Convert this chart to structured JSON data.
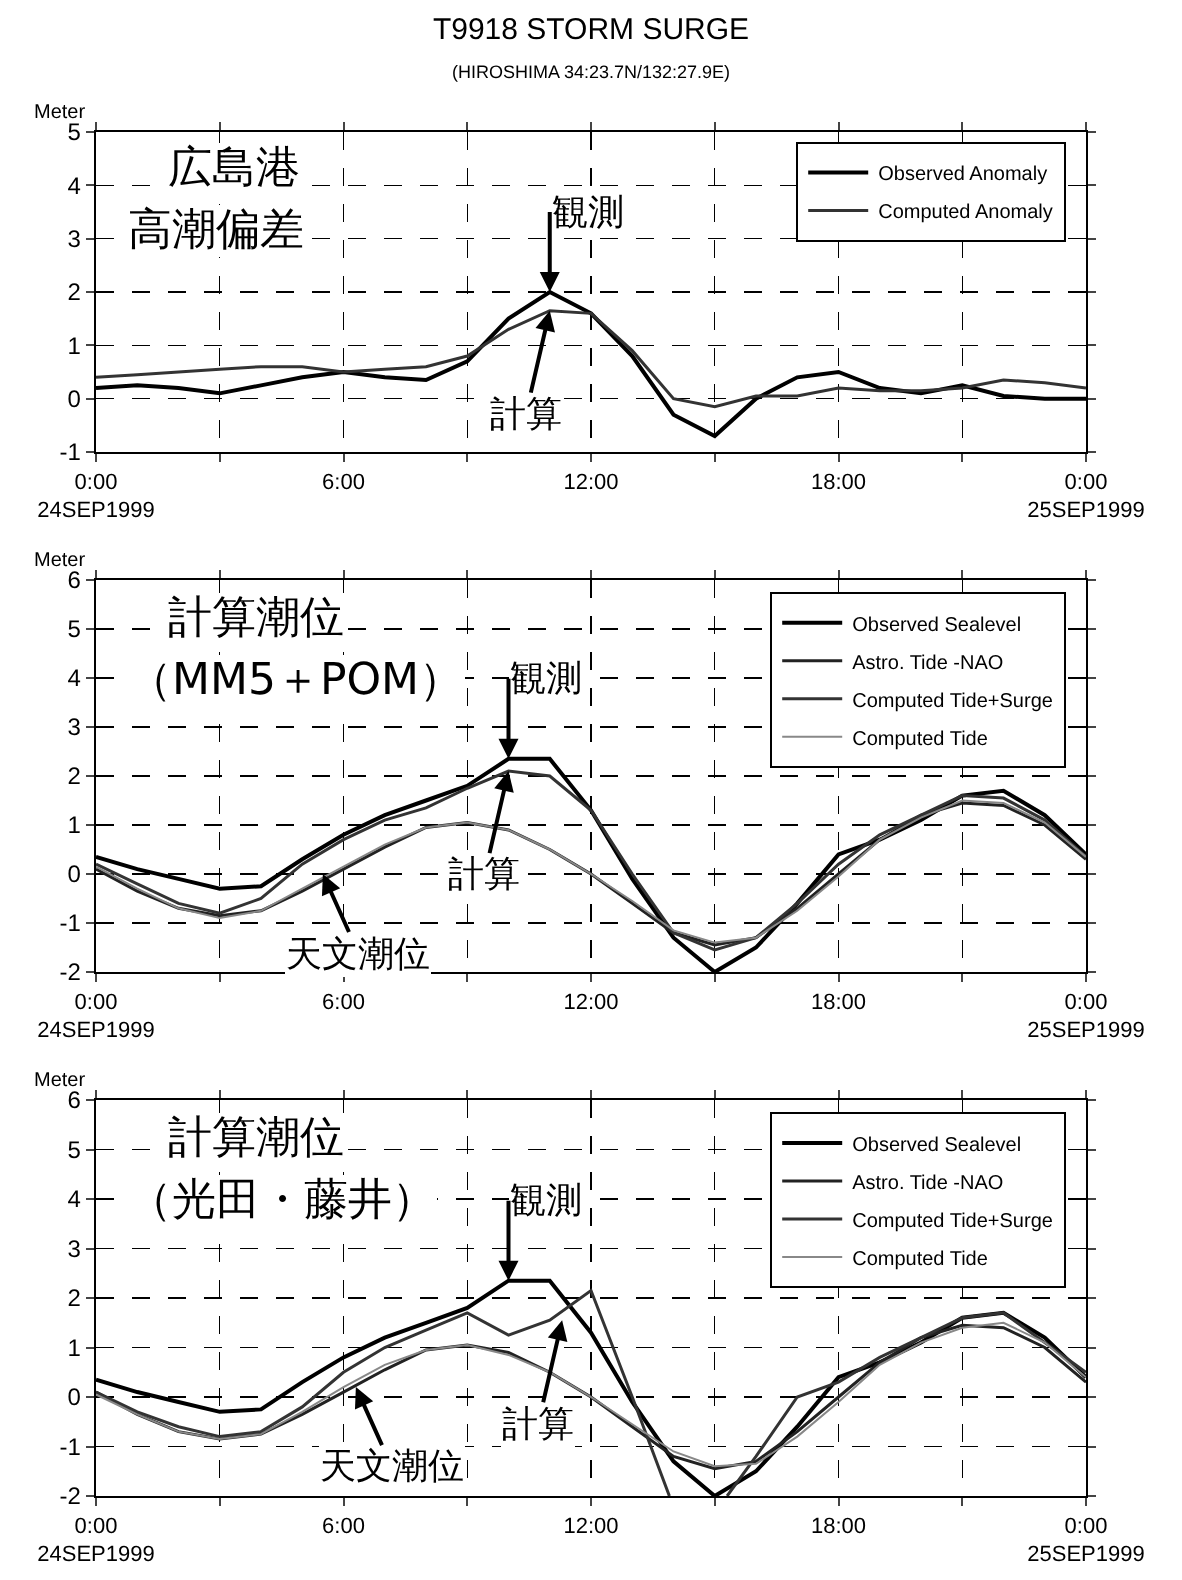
{
  "chart_data": [
    {
      "type": "line",
      "title": "T9918 STORM SURGE",
      "subtitle": "(HIROSHIMA 34:23.7N/132:27.9E)",
      "ylabel": "Meter",
      "x": [
        0,
        1,
        2,
        3,
        4,
        5,
        6,
        7,
        8,
        9,
        10,
        11,
        12,
        13,
        14,
        15,
        16,
        17,
        18,
        19,
        20,
        21,
        22,
        23,
        24
      ],
      "series": [
        {
          "name": "Observed Anomaly",
          "color": "#000000",
          "values": [
            0.2,
            0.25,
            0.2,
            0.1,
            0.25,
            0.4,
            0.5,
            0.4,
            0.35,
            0.7,
            1.5,
            2.0,
            1.6,
            0.8,
            -0.3,
            -0.7,
            0.0,
            0.4,
            0.5,
            0.2,
            0.1,
            0.25,
            0.05,
            0.0,
            0.0
          ]
        },
        {
          "name": "Computed Anomaly",
          "color": "#333333",
          "values": [
            0.4,
            0.45,
            0.5,
            0.55,
            0.6,
            0.6,
            0.5,
            0.55,
            0.6,
            0.8,
            1.3,
            1.65,
            1.6,
            0.9,
            0.0,
            -0.15,
            0.05,
            0.05,
            0.2,
            0.15,
            0.15,
            0.2,
            0.35,
            0.3,
            0.2
          ]
        }
      ],
      "xlim": [
        0,
        24
      ],
      "xticks": [
        {
          "value": 0,
          "label": "0:00\n24SEP1999"
        },
        {
          "value": 3,
          "label": null
        },
        {
          "value": 6,
          "label": "6:00"
        },
        {
          "value": 9,
          "label": null
        },
        {
          "value": 12,
          "label": "12:00"
        },
        {
          "value": 15,
          "label": null
        },
        {
          "value": 18,
          "label": "18:00"
        },
        {
          "value": 21,
          "label": null
        },
        {
          "value": 24,
          "label": "0:00\n25SEP1999"
        }
      ],
      "ylim": [
        -1,
        5
      ],
      "yticks": [
        -1,
        0,
        1,
        2,
        3,
        4,
        5
      ],
      "grid": true,
      "legend": "top right",
      "annotations": [
        "広島港",
        "高潮偏差",
        {
          "text": "観測",
          "x": 11,
          "y": 2.0
        },
        {
          "text": "計算",
          "x": 11,
          "y": 1.65
        }
      ]
    },
    {
      "type": "line",
      "ylabel": "Meter",
      "x": [
        0,
        1,
        2,
        3,
        4,
        5,
        6,
        7,
        8,
        9,
        10,
        11,
        12,
        13,
        14,
        15,
        16,
        17,
        18,
        19,
        20,
        21,
        22,
        23,
        24
      ],
      "series": [
        {
          "name": "Observed Sealevel",
          "color": "#000000",
          "values": [
            0.35,
            0.1,
            -0.1,
            -0.3,
            -0.25,
            0.3,
            0.8,
            1.2,
            1.5,
            1.8,
            2.35,
            2.35,
            1.3,
            -0.1,
            -1.3,
            -2.0,
            -1.5,
            -0.6,
            0.4,
            0.7,
            1.1,
            1.6,
            1.7,
            1.2,
            0.4
          ]
        },
        {
          "name": "Astro. Tide -NAO",
          "color": "#222222",
          "values": [
            0.1,
            -0.35,
            -0.7,
            -0.85,
            -0.75,
            -0.35,
            0.1,
            0.55,
            0.95,
            1.05,
            0.9,
            0.5,
            0.0,
            -0.6,
            -1.2,
            -1.45,
            -1.3,
            -0.7,
            0.0,
            0.7,
            1.2,
            1.45,
            1.4,
            1.0,
            0.3
          ]
        },
        {
          "name": "Computed Tide+Surge",
          "color": "#333333",
          "values": [
            0.2,
            -0.2,
            -0.6,
            -0.8,
            -0.5,
            0.2,
            0.7,
            1.1,
            1.35,
            1.75,
            2.1,
            2.0,
            1.3,
            0.0,
            -1.2,
            -1.55,
            -1.3,
            -0.6,
            0.2,
            0.8,
            1.2,
            1.6,
            1.55,
            1.1,
            0.35
          ]
        },
        {
          "name": "Computed Tide",
          "color": "#888888",
          "values": [
            0.15,
            -0.3,
            -0.7,
            -0.9,
            -0.75,
            -0.3,
            0.15,
            0.6,
            0.95,
            1.05,
            0.9,
            0.5,
            0.0,
            -0.55,
            -1.15,
            -1.4,
            -1.3,
            -0.75,
            -0.05,
            0.7,
            1.15,
            1.5,
            1.45,
            1.05,
            0.35
          ]
        }
      ],
      "xlim": [
        0,
        24
      ],
      "xticks": [
        {
          "value": 0,
          "label": "0:00\n24SEP1999"
        },
        {
          "value": 3,
          "label": null
        },
        {
          "value": 6,
          "label": "6:00"
        },
        {
          "value": 9,
          "label": null
        },
        {
          "value": 12,
          "label": "12:00"
        },
        {
          "value": 15,
          "label": null
        },
        {
          "value": 18,
          "label": "18:00"
        },
        {
          "value": 21,
          "label": null
        },
        {
          "value": 24,
          "label": "0:00\n25SEP1999"
        }
      ],
      "ylim": [
        -2,
        6
      ],
      "yticks": [
        -2,
        -1,
        0,
        1,
        2,
        3,
        4,
        5,
        6
      ],
      "grid": true,
      "legend": "top right",
      "annotations": [
        "計算潮位",
        "（MM5＋POM）",
        {
          "text": "観測",
          "x": 10,
          "y": 2.35
        },
        {
          "text": "計算",
          "x": 10,
          "y": 2.1
        },
        {
          "text": "天文潮位",
          "x": 5.5,
          "y": 0.0
        }
      ]
    },
    {
      "type": "line",
      "ylabel": "Meter",
      "x": [
        0,
        1,
        2,
        3,
        4,
        5,
        6,
        7,
        8,
        9,
        10,
        11,
        12,
        13,
        14,
        15,
        16,
        17,
        18,
        19,
        20,
        21,
        22,
        23,
        24
      ],
      "series": [
        {
          "name": "Observed Sealevel",
          "color": "#000000",
          "values": [
            0.35,
            0.1,
            -0.1,
            -0.3,
            -0.25,
            0.3,
            0.8,
            1.2,
            1.5,
            1.8,
            2.35,
            2.35,
            1.3,
            -0.1,
            -1.3,
            -2.0,
            -1.5,
            -0.6,
            0.4,
            0.7,
            1.1,
            1.6,
            1.7,
            1.2,
            0.4
          ]
        },
        {
          "name": "Astro. Tide -NAO",
          "color": "#222222",
          "values": [
            0.1,
            -0.35,
            -0.7,
            -0.85,
            -0.75,
            -0.35,
            0.1,
            0.55,
            0.95,
            1.05,
            0.9,
            0.5,
            0.0,
            -0.6,
            -1.2,
            -1.45,
            -1.3,
            -0.7,
            0.0,
            0.7,
            1.2,
            1.45,
            1.4,
            1.0,
            0.3
          ]
        },
        {
          "name": "Computed Tide+Surge",
          "color": "#333333",
          "x": [
            0,
            1,
            2,
            3,
            4,
            5,
            6,
            7,
            8,
            9,
            10,
            11,
            12,
            13,
            13.9,
            14.6,
            15.3,
            16,
            17,
            18,
            19,
            20,
            21,
            22,
            23,
            24
          ],
          "values": [
            0.1,
            -0.3,
            -0.6,
            -0.8,
            -0.7,
            -0.2,
            0.5,
            1.0,
            1.35,
            1.7,
            1.25,
            1.55,
            2.15,
            0.0,
            -2.0,
            null,
            -2.0,
            -1.2,
            0.0,
            0.3,
            0.8,
            1.2,
            1.6,
            1.7,
            1.1,
            0.5
          ]
        },
        {
          "name": "Computed Tide",
          "color": "#888888",
          "values": [
            0.05,
            -0.35,
            -0.7,
            -0.85,
            -0.75,
            -0.3,
            0.2,
            0.65,
            0.95,
            1.05,
            0.85,
            0.5,
            0.0,
            -0.55,
            -1.1,
            -1.4,
            -1.35,
            -0.8,
            -0.1,
            0.65,
            1.1,
            1.4,
            1.5,
            1.1,
            0.4
          ]
        }
      ],
      "xlim": [
        0,
        24
      ],
      "xticks": [
        {
          "value": 0,
          "label": "0:00\n24SEP1999"
        },
        {
          "value": 3,
          "label": null
        },
        {
          "value": 6,
          "label": "6:00"
        },
        {
          "value": 9,
          "label": null
        },
        {
          "value": 12,
          "label": "12:00"
        },
        {
          "value": 15,
          "label": null
        },
        {
          "value": 18,
          "label": "18:00"
        },
        {
          "value": 21,
          "label": null
        },
        {
          "value": 24,
          "label": "0:00\n25SEP1999"
        }
      ],
      "ylim": [
        -2,
        6
      ],
      "yticks": [
        -2,
        -1,
        0,
        1,
        2,
        3,
        4,
        5,
        6
      ],
      "grid": true,
      "legend": "top right",
      "annotations": [
        "計算潮位",
        "（光田・藤井）",
        {
          "text": "観測",
          "x": 10,
          "y": 2.35
        },
        {
          "text": "計算",
          "x": 11.3,
          "y": 1.55
        },
        {
          "text": "天文潮位",
          "x": 6.3,
          "y": 0.2
        }
      ]
    }
  ]
}
